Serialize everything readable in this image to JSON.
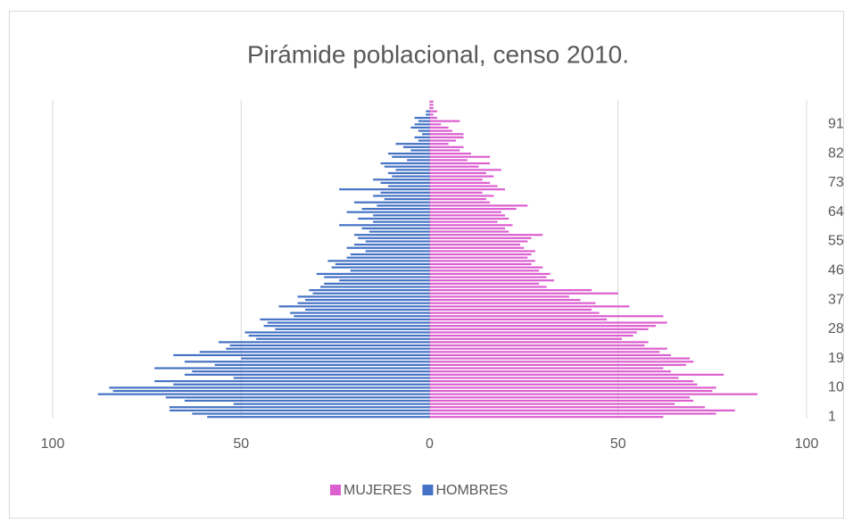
{
  "chart_data": {
    "type": "bar",
    "orientation": "horizontal",
    "title": "Pirámide poblacional, censo 2010.",
    "categories": [
      1,
      null,
      null,
      null,
      null,
      null,
      null,
      null,
      null,
      10,
      null,
      null,
      null,
      null,
      null,
      null,
      null,
      null,
      19,
      null,
      null,
      null,
      null,
      null,
      null,
      null,
      null,
      28,
      null,
      null,
      null,
      null,
      null,
      null,
      null,
      null,
      37,
      null,
      null,
      null,
      null,
      null,
      null,
      null,
      null,
      46,
      null,
      null,
      null,
      null,
      null,
      null,
      null,
      null,
      55,
      null,
      null,
      null,
      null,
      null,
      null,
      null,
      null,
      64,
      null,
      null,
      null,
      null,
      null,
      null,
      null,
      null,
      73,
      null,
      null,
      null,
      null,
      null,
      null,
      null,
      null,
      82,
      null,
      null,
      null,
      null,
      null,
      null,
      null,
      null,
      91,
      null,
      null,
      null,
      null,
      null,
      null,
      null
    ],
    "series": [
      {
        "name": "MUJERES",
        "color": "#dc5fd0",
        "values": [
          62,
          76,
          81,
          73,
          65,
          70,
          69,
          87,
          75,
          76,
          71,
          70,
          66,
          78,
          64,
          62,
          68,
          70,
          69,
          64,
          61,
          63,
          57,
          58,
          51,
          54,
          55,
          58,
          60,
          63,
          47,
          62,
          45,
          43,
          53,
          44,
          40,
          37,
          50,
          43,
          31,
          29,
          33,
          31,
          32,
          29,
          30,
          27,
          28,
          26,
          27,
          28,
          25,
          24,
          26,
          27,
          30,
          21,
          20,
          22,
          18,
          21,
          20,
          19,
          23,
          26,
          16,
          15,
          17,
          14,
          20,
          18,
          16,
          14,
          17,
          15,
          19,
          13,
          16,
          10,
          16,
          11,
          8,
          9,
          5,
          7,
          9,
          9,
          6,
          5,
          3,
          8,
          2,
          1,
          2,
          1,
          1,
          1
        ]
      },
      {
        "name": "HOMBRES",
        "color": "#4472c4",
        "values": [
          -59,
          -63,
          -69,
          -69,
          -52,
          -65,
          -70,
          -88,
          -84,
          -85,
          -68,
          -73,
          -52,
          -65,
          -63,
          -73,
          -57,
          -65,
          -50,
          -68,
          -61,
          -54,
          -53,
          -56,
          -46,
          -48,
          -49,
          -41,
          -44,
          -43,
          -45,
          -36,
          -37,
          -33,
          -40,
          -35,
          -33,
          -35,
          -31,
          -32,
          -29,
          -28,
          -24,
          -28,
          -30,
          -21,
          -26,
          -25,
          -27,
          -22,
          -21,
          -17,
          -22,
          -20,
          -17,
          -19,
          -20,
          -16,
          -18,
          -24,
          -15,
          -19,
          -15,
          -22,
          -18,
          -14,
          -20,
          -12,
          -15,
          -13,
          -24,
          -11,
          -13,
          -15,
          -10,
          -11,
          -9,
          -12,
          -13,
          -6,
          -10,
          -11,
          -5,
          -7,
          -9,
          -3,
          -4,
          -2,
          -3,
          -5,
          -4,
          -3,
          -4,
          -1,
          -1,
          0,
          0,
          0
        ]
      }
    ],
    "xlim": [
      -100,
      100
    ],
    "xticks": [
      {
        "value": -100,
        "label": "100"
      },
      {
        "value": -50,
        "label": "50"
      },
      0,
      50,
      100
    ],
    "grid": true,
    "legend": "bottom"
  }
}
